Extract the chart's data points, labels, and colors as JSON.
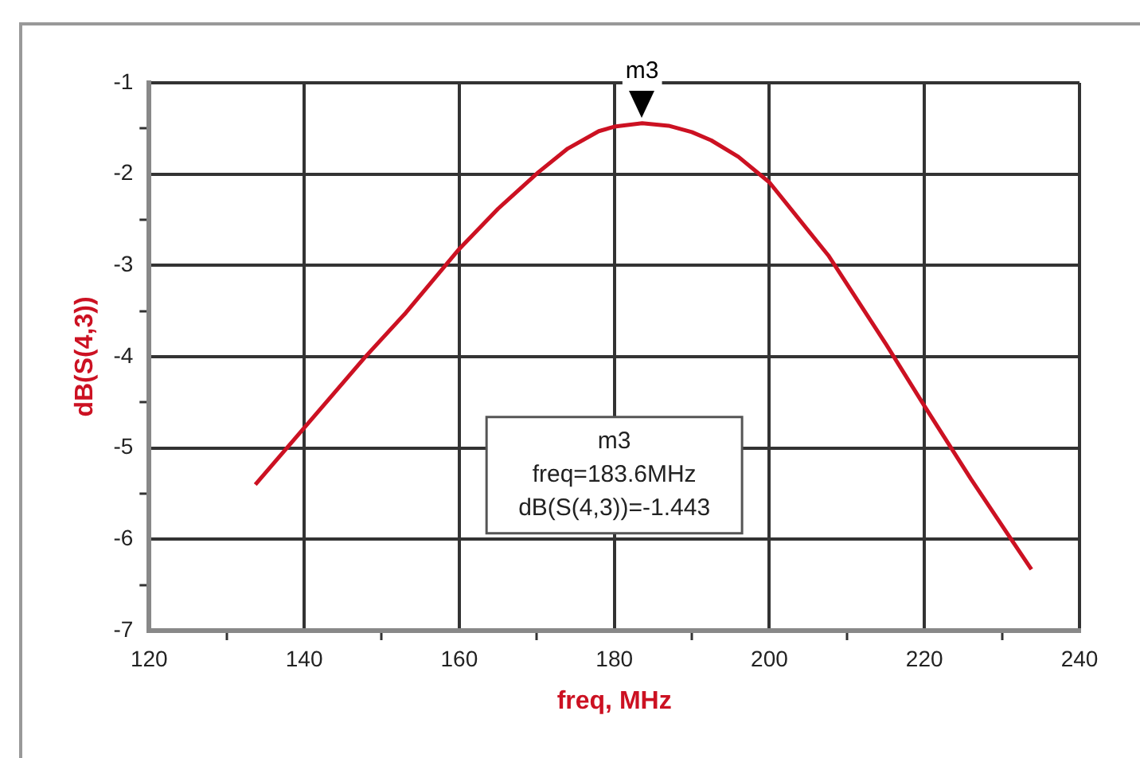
{
  "chart_data": {
    "type": "line",
    "xlabel": "freq, MHz",
    "ylabel": "dB(S(4,3))",
    "x": [
      133.7,
      140,
      147.8,
      153.1,
      160,
      165,
      170.2,
      174,
      178,
      180,
      183.6,
      187,
      190,
      192.5,
      196,
      200,
      207.6,
      215.1,
      220,
      226,
      233.8
    ],
    "series": [
      {
        "color": "#cc1122",
        "values": [
          -5.4,
          -4.78,
          -4.01,
          -3.52,
          -2.82,
          -2.38,
          -1.98,
          -1.72,
          -1.53,
          -1.48,
          -1.443,
          -1.47,
          -1.54,
          -1.63,
          -1.81,
          -2.09,
          -2.89,
          -3.87,
          -4.54,
          -5.34,
          -6.33
        ]
      }
    ],
    "xlim": [
      120,
      240
    ],
    "xticks": [
      120,
      {
        "value": 130,
        "label": null
      },
      140,
      {
        "value": 150,
        "label": null
      },
      160,
      {
        "value": 170,
        "label": null
      },
      180,
      {
        "value": 190,
        "label": null
      },
      200,
      {
        "value": 210,
        "label": null
      },
      220,
      {
        "value": 230,
        "label": null
      },
      240
    ],
    "ylim": [
      -7,
      -1
    ],
    "yticks": [
      -7,
      {
        "value": -6.5,
        "label": null
      },
      -6,
      {
        "value": -5.5,
        "label": null
      },
      -5,
      {
        "value": -4.5,
        "label": null
      },
      -4,
      {
        "value": -3.5,
        "label": null
      },
      -3,
      {
        "value": -2.5,
        "label": null
      },
      -2,
      {
        "value": -1.5,
        "label": null
      },
      -1
    ],
    "grid": true,
    "annotations": [
      {
        "text": "m3",
        "x": 183.6,
        "y": -1.443
      },
      "m3",
      "freq=183.6MHz",
      "dB(S(4,3))=-1.443"
    ]
  }
}
